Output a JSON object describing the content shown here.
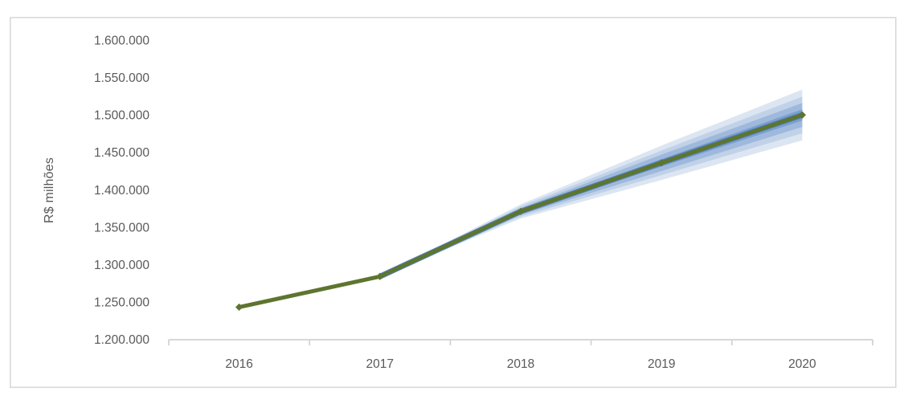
{
  "chart_data": {
    "type": "line",
    "title": "",
    "xlabel": "",
    "ylabel": "R$ milhões",
    "legend": "none",
    "grid": false,
    "ylim": [
      1200000,
      1600000
    ],
    "x_labels": [
      "2016",
      "2017",
      "2018",
      "2019",
      "2020"
    ],
    "x_values": [
      2016,
      2017,
      2018,
      2019,
      2020
    ],
    "y_ticks": [
      {
        "value": 1200000,
        "label": "1.200.000"
      },
      {
        "value": 1250000,
        "label": "1.250.000"
      },
      {
        "value": 1300000,
        "label": "1.300.000"
      },
      {
        "value": 1350000,
        "label": "1.350.000"
      },
      {
        "value": 1400000,
        "label": "1.400.000"
      },
      {
        "value": 1450000,
        "label": "1.450.000"
      },
      {
        "value": 1500000,
        "label": "1.500.000"
      },
      {
        "value": 1550000,
        "label": "1.550.000"
      },
      {
        "value": 1600000,
        "label": "1.600.000"
      }
    ],
    "series": [
      {
        "name": "trajetoria-central",
        "color": "#5e752f",
        "marker": "diamond",
        "x": [
          2016,
          2017,
          2018,
          2019,
          2020
        ],
        "values": [
          1243000,
          1284000,
          1371000,
          1436000,
          1500000
        ]
      }
    ],
    "center_forecast_line": {
      "name": "linha-central-previsao",
      "color": "#4f81bd",
      "x": [
        2017,
        2018,
        2019,
        2020
      ],
      "values": [
        1284000,
        1371000,
        1436000,
        1500000
      ]
    },
    "bands": [
      {
        "name": "banda-externa",
        "color": "#dce6f2",
        "x": [
          2017,
          2018,
          2019,
          2020
        ],
        "upper": [
          1284000,
          1380500,
          1459000,
          1534000
        ],
        "lower": [
          1284000,
          1361500,
          1413000,
          1466000
        ]
      },
      {
        "name": "banda-2",
        "color": "#c1d2e8",
        "x": [
          2017,
          2018,
          2019,
          2020
        ],
        "upper": [
          1284000,
          1378000,
          1452500,
          1524500
        ],
        "lower": [
          1284000,
          1364000,
          1419500,
          1475500
        ]
      },
      {
        "name": "banda-3",
        "color": "#9fb9dc",
        "x": [
          2017,
          2018,
          2019,
          2020
        ],
        "upper": [
          1284000,
          1375500,
          1447000,
          1516000
        ],
        "lower": [
          1284000,
          1366500,
          1425000,
          1484000
        ]
      },
      {
        "name": "banda-interna",
        "color": "#7b9fd0",
        "x": [
          2017,
          2018,
          2019,
          2020
        ],
        "upper": [
          1284000,
          1373000,
          1441000,
          1507500
        ],
        "lower": [
          1284000,
          1369000,
          1431000,
          1492500
        ]
      }
    ],
    "colors": {
      "frame": "#d9d9d9",
      "axis": "#d3d3d3",
      "tick_text": "#595959"
    }
  }
}
